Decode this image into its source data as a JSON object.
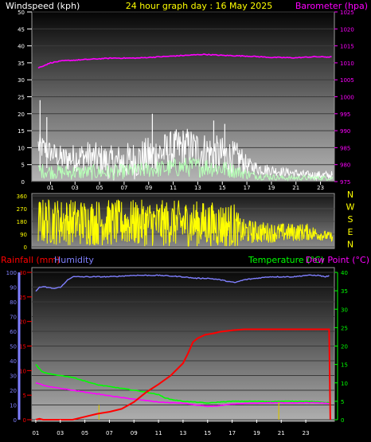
{
  "header": {
    "windspeed_label": "Windspeed (kph)",
    "title": "24 hour graph day : 16 May 2025",
    "barometer_label": "Barometer (hpa)"
  },
  "colors": {
    "background": "#000000",
    "windspeed_label": "#ffffff",
    "title": "#ffff00",
    "barometer": "#ff00ff",
    "gust": "#ffffff",
    "avg_wind": "#b8ffb8",
    "direction": "#ffff00",
    "rain": "#ff0000",
    "humidity": "#8080ff",
    "temperature": "#00ff00",
    "dewpoint": "#ff00ff",
    "rain_rate": "#d4c000"
  },
  "chart_data": [
    {
      "id": "wind",
      "type": "line",
      "title": "24 hour graph day : 16 May 2025",
      "left_axis": {
        "label": "Windspeed (kph)",
        "range": [
          0,
          50
        ],
        "ticks": [
          "0",
          "5",
          "10",
          "15",
          "20",
          "25",
          "30",
          "35",
          "40",
          "45",
          "50"
        ]
      },
      "right_axis": {
        "label": "Barometer (hpa)",
        "range": [
          975,
          1025
        ],
        "ticks": [
          "975",
          "980",
          "985",
          "990",
          "995",
          "1000",
          "1005",
          "1010",
          "1015",
          "1020",
          "1025"
        ]
      },
      "x_ticks": [
        "01",
        "03",
        "05",
        "07",
        "09",
        "11",
        "13",
        "15",
        "17",
        "19",
        "21",
        "23"
      ],
      "series": [
        {
          "name": "Barometer (hpa)",
          "axis": "right",
          "x": [
            0,
            1,
            2,
            4,
            6,
            8,
            10,
            12,
            13.5,
            15,
            17,
            19,
            21,
            22.5,
            24
          ],
          "y": [
            1008.5,
            1010.0,
            1010.6,
            1011.0,
            1011.4,
            1011.4,
            1011.8,
            1012.2,
            1012.5,
            1012.2,
            1012.0,
            1011.6,
            1011.5,
            1011.8,
            1011.7
          ]
        },
        {
          "name": "gust",
          "x": [
            0,
            1,
            2,
            4,
            6,
            8,
            10,
            12,
            14,
            15.5,
            16.5,
            17,
            18,
            20,
            22,
            24
          ],
          "y": [
            11,
            9,
            7,
            8,
            6,
            7,
            9,
            11,
            9,
            8,
            7,
            5,
            4,
            3,
            2,
            2
          ],
          "jitter": [
            6,
            5,
            6,
            7,
            8,
            9,
            9,
            9,
            9,
            8,
            7,
            4,
            3,
            2,
            2,
            2
          ],
          "peaks": [
            {
              "x": 0.15,
              "y": 24
            },
            {
              "x": 0.7,
              "y": 19
            },
            {
              "x": 9.3,
              "y": 20
            },
            {
              "x": 14.3,
              "y": 18
            },
            {
              "x": 15.2,
              "y": 17
            }
          ]
        },
        {
          "name": "average",
          "x": [
            0,
            2,
            4,
            6,
            8,
            10,
            12,
            14,
            16,
            17,
            18,
            20,
            22,
            24
          ],
          "y": [
            3,
            2.5,
            2.5,
            2.5,
            3,
            3.5,
            4,
            4,
            3,
            2,
            1.5,
            1,
            1,
            1
          ],
          "jitter": [
            3,
            3,
            3,
            3,
            3,
            3.5,
            4,
            4,
            3,
            2,
            1.5,
            1,
            1,
            1
          ]
        }
      ]
    },
    {
      "id": "direction",
      "type": "line",
      "left_axis": {
        "range": [
          0,
          360
        ],
        "ticks": [
          "0",
          "90",
          "180",
          "270",
          "360"
        ]
      },
      "right_labels": [
        "N",
        "W",
        "S",
        "E",
        "N"
      ],
      "series": [
        {
          "name": "direction",
          "x": [
            0,
            6,
            12,
            16,
            16.5,
            19,
            22,
            23,
            24
          ],
          "center": [
            180,
            170,
            165,
            150,
            110,
            100,
            105,
            85,
            70
          ],
          "spread": [
            165,
            165,
            165,
            160,
            90,
            70,
            60,
            40,
            30
          ]
        }
      ]
    },
    {
      "id": "rain_temp",
      "type": "line",
      "header_labels": {
        "rain": "Rainfall (mm)",
        "humidity": "Humidity",
        "temperature": "Temperature (°C)",
        "dewpoint": "Dew Point (°C)"
      },
      "rain_axis": {
        "label": "Rainfall (mm)",
        "range": [
          0,
          30
        ],
        "ticks": [
          "0",
          "5",
          "10",
          "15",
          "20",
          "25",
          "30"
        ]
      },
      "humidity_axis": {
        "label": "Humidity",
        "range": [
          0,
          100
        ],
        "ticks": [
          "0",
          "10",
          "20",
          "30",
          "40",
          "50",
          "60",
          "70",
          "80",
          "90",
          "100"
        ]
      },
      "temp_axis": {
        "label": "Temperature (°C)",
        "range": [
          0,
          40
        ],
        "ticks": [
          "0",
          "5",
          "10",
          "15",
          "20",
          "25",
          "30",
          "35",
          "40"
        ]
      },
      "x_ticks": [
        "01",
        "03",
        "05",
        "07",
        "09",
        "11",
        "13",
        "15",
        "17",
        "19",
        "21",
        "23"
      ],
      "series": [
        {
          "name": "Humidity",
          "axis": "humidity",
          "x": [
            0,
            0.3,
            0.8,
            1.5,
            2,
            2.3,
            2.6,
            3,
            4,
            6,
            8,
            10,
            12,
            13,
            14,
            15,
            16.2,
            17,
            18,
            19,
            20,
            21,
            22,
            23,
            23.6,
            24
          ],
          "y": [
            87,
            90,
            90,
            89,
            90,
            92,
            95,
            97,
            97,
            97,
            98,
            98,
            97,
            96,
            96,
            95,
            93,
            95,
            96,
            97,
            97,
            97,
            98,
            98,
            97,
            98
          ]
        },
        {
          "name": "Temperature (°C)",
          "axis": "temp",
          "x": [
            0,
            0.5,
            1,
            2,
            3,
            4,
            5,
            6,
            7,
            8,
            9,
            10,
            10.5,
            11,
            12,
            13,
            14,
            15,
            16,
            17,
            18,
            19,
            20,
            21,
            22,
            23,
            24
          ],
          "y": [
            15,
            13,
            12.5,
            12,
            11.5,
            10.5,
            9.5,
            9,
            8.5,
            8,
            7.5,
            6.8,
            6,
            5.5,
            5,
            4.8,
            4.5,
            4.8,
            5,
            5,
            5,
            4.9,
            5,
            5,
            5,
            4.8,
            4.6
          ]
        },
        {
          "name": "Dew Point (°C)",
          "axis": "temp",
          "x": [
            0,
            0.5,
            1,
            2,
            3,
            4,
            5,
            6,
            7,
            8,
            9,
            10,
            11,
            12,
            13,
            14,
            15,
            16,
            17,
            18,
            19,
            20,
            21,
            22,
            23,
            24
          ],
          "y": [
            10,
            9.5,
            9,
            8.5,
            8,
            7.5,
            7,
            6.5,
            6,
            5.6,
            5.2,
            4.8,
            4.6,
            4.5,
            4,
            3.6,
            3.8,
            4.2,
            4.4,
            4.5,
            4.6,
            4.6,
            4.6,
            4.6,
            4.6,
            4.4
          ]
        },
        {
          "name": "Rainfall (mm)",
          "axis": "rain",
          "x": [
            0,
            0.3,
            0.6,
            3,
            4,
            5,
            6,
            7,
            8,
            9,
            10,
            11,
            12,
            12.4,
            12.8,
            13.2,
            13.8,
            14.5,
            15,
            16,
            17,
            18,
            19,
            20,
            21,
            22,
            23,
            23.9,
            24
          ],
          "y": [
            0,
            0.2,
            0,
            0,
            0.6,
            1.2,
            1.6,
            2.2,
            3.6,
            5.6,
            7.2,
            9,
            11.5,
            13.5,
            15.8,
            16.6,
            17.3,
            17.6,
            17.9,
            18.2,
            18.4,
            18.4,
            18.4,
            18.4,
            18.4,
            18.4,
            18.4,
            18.4,
            0
          ]
        },
        {
          "name": "rain rate",
          "axis": "rain",
          "type": "bar",
          "x": [
            5.15,
            19.8,
            24.0
          ],
          "y": [
            3,
            3.5,
            2
          ]
        }
      ]
    }
  ]
}
